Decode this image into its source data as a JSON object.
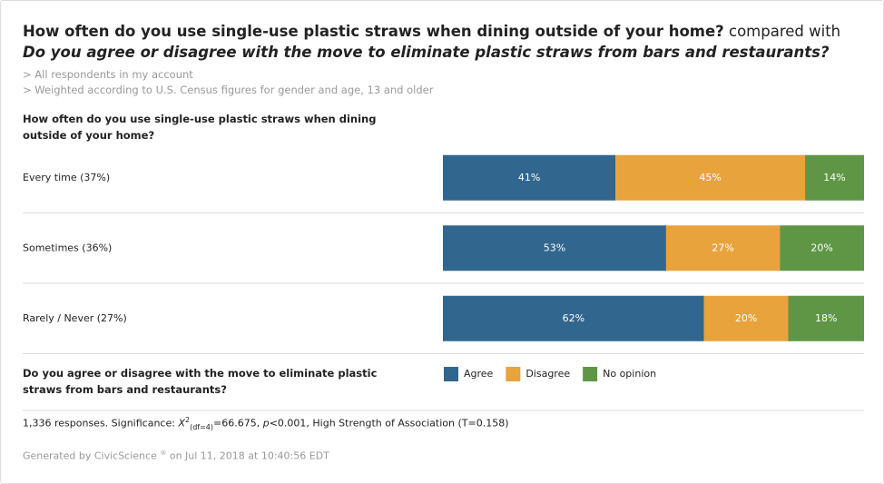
{
  "chart_data": {
    "type": "stacked-bar",
    "title": [
      "How often do you use single-use plastic straws when dining outside of your home?",
      "compared with",
      "Do you agree or disagree with the move to eliminate plastic straws from bars and restaurants?"
    ],
    "notes": [
      "> All respondents in my account",
      "> Weighted according to U.S. Census figures for gender and age, 13 and older"
    ],
    "y_label": "How often do you use single-use plastic straws when dining outside of your home?",
    "legend_title": "Do you agree or disagree with the move to eliminate plastic straws from bars and restaurants?",
    "categories": [
      "Every time (37%)",
      "Sometimes (36%)",
      "Rarely / Never (27%)"
    ],
    "xlim": [
      0,
      100
    ],
    "series": [
      {
        "name": "Agree",
        "color": "#31668f",
        "values": [
          41,
          53,
          62
        ],
        "value_labels": [
          "41%",
          "53%",
          "62%"
        ]
      },
      {
        "name": "Disagree",
        "color": "#e8a33c",
        "values": [
          45,
          27,
          20
        ],
        "value_labels": [
          "45%",
          "27%",
          "20%"
        ]
      },
      {
        "name": "No opinion",
        "color": "#5e9646",
        "values": [
          14,
          20,
          18
        ],
        "value_labels": [
          "14%",
          "20%",
          "18%"
        ]
      }
    ],
    "footnote": [
      "1,336 responses. Significance:",
      "X",
      "2",
      "(df=4)",
      "=66.675,",
      "p",
      "<0.001, High Strength of Association (T=0.158)"
    ],
    "credit": [
      "Generated by CivicScience",
      "®",
      "on Jul 11, 2018 at 10:40:56 EDT"
    ]
  }
}
